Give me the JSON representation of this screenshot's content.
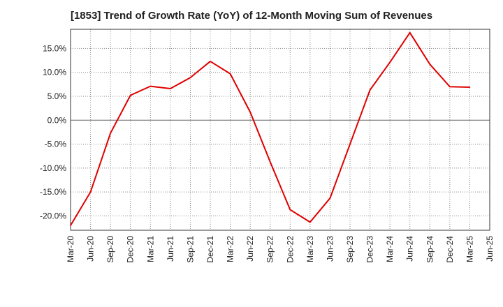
{
  "title": "[1853]  Trend of Growth Rate (YoY) of 12-Month Moving Sum of Revenues",
  "chart_data": {
    "type": "line",
    "title": "[1853]  Trend of Growth Rate (YoY) of 12-Month Moving Sum of Revenues",
    "xlabel": "",
    "ylabel": "",
    "ylim": [
      -23,
      19
    ],
    "y_ticks": [
      -20,
      -15,
      -10,
      -5,
      0,
      5,
      10,
      15
    ],
    "y_tick_labels": [
      "-20.0%",
      "-15.0%",
      "-10.0%",
      "-5.0%",
      "0.0%",
      "5.0%",
      "10.0%",
      "15.0%"
    ],
    "x_tick_labels": [
      "Mar-20",
      "Jun-20",
      "Sep-20",
      "Dec-20",
      "Mar-21",
      "Jun-21",
      "Sep-21",
      "Dec-21",
      "Mar-22",
      "Jun-22",
      "Sep-22",
      "Dec-22",
      "Mar-23",
      "Jun-23",
      "Sep-23",
      "Dec-23",
      "Mar-24",
      "Jun-24",
      "Sep-24",
      "Dec-24",
      "Mar-25",
      "Jun-25"
    ],
    "grid": true,
    "line_color": "#e00000",
    "series": [
      {
        "x": [
          "Mar-20",
          "Jun-20",
          "Sep-20",
          "Dec-20",
          "Mar-21",
          "Jun-21",
          "Sep-21",
          "Dec-21",
          "Mar-22",
          "Jun-22",
          "Sep-22",
          "Dec-22",
          "Mar-23",
          "Jun-23",
          "Sep-23",
          "Dec-23",
          "Mar-24",
          "Jun-24",
          "Sep-24",
          "Dec-24",
          "Mar-25"
        ],
        "values": [
          -22.0,
          -15.0,
          -2.7,
          5.2,
          7.1,
          6.6,
          8.9,
          12.3,
          9.7,
          1.7,
          -8.7,
          -18.7,
          -21.3,
          -16.3,
          -5.0,
          6.3,
          12.1,
          18.3,
          11.7,
          7.0,
          6.9
        ]
      }
    ]
  }
}
